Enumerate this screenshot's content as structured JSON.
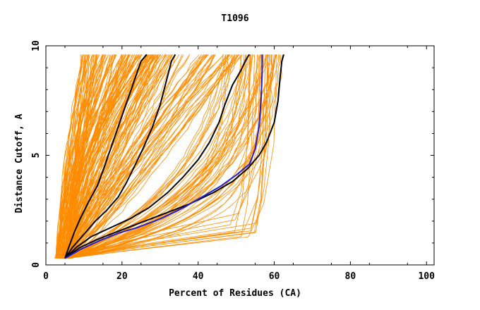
{
  "colors": {
    "background": "#ffffff",
    "frame": "#000000",
    "bundle": "#ff8c00",
    "highlight_black": "#000000",
    "highlight_blue": "#2020d0"
  },
  "chart_data": {
    "type": "line",
    "title": "T1096",
    "xlabel": "Percent of Residues (CA)",
    "ylabel": "Distance Cutoff, A",
    "xlim": [
      0,
      102
    ],
    "ylim": [
      0,
      10
    ],
    "x_ticks": [
      0,
      20,
      40,
      60,
      80,
      100
    ],
    "x_tick_labels": [
      "0",
      "20",
      "40",
      "60",
      "80",
      "100"
    ],
    "y_ticks": [
      0,
      5,
      10
    ],
    "y_tick_labels": [
      "0",
      "5",
      "10"
    ],
    "grid": false,
    "legend": "none",
    "series": [
      {
        "style": "black",
        "points": [
          [
            5,
            0.3
          ],
          [
            6,
            0.8
          ],
          [
            7.5,
            1.5
          ],
          [
            9,
            2.1
          ],
          [
            11,
            2.8
          ],
          [
            13.5,
            3.6
          ],
          [
            15,
            4.3
          ],
          [
            17,
            5.3
          ],
          [
            19,
            6.3
          ],
          [
            21,
            7.3
          ],
          [
            23,
            8.3
          ],
          [
            25,
            9.3
          ],
          [
            26.5,
            9.6
          ]
        ]
      },
      {
        "style": "black",
        "points": [
          [
            5,
            0.3
          ],
          [
            7,
            0.8
          ],
          [
            10,
            1.4
          ],
          [
            13,
            2.0
          ],
          [
            16,
            2.5
          ],
          [
            19,
            3.1
          ],
          [
            21,
            3.7
          ],
          [
            23,
            4.4
          ],
          [
            25.5,
            5.3
          ],
          [
            28,
            6.3
          ],
          [
            30,
            7.3
          ],
          [
            31.5,
            8.3
          ],
          [
            33,
            9.3
          ],
          [
            34,
            9.6
          ]
        ]
      },
      {
        "style": "black",
        "points": [
          [
            5,
            0.3
          ],
          [
            8,
            0.8
          ],
          [
            12,
            1.3
          ],
          [
            17,
            1.7
          ],
          [
            22,
            2.1
          ],
          [
            27,
            2.6
          ],
          [
            32,
            3.3
          ],
          [
            36,
            4.0
          ],
          [
            40,
            4.8
          ],
          [
            43,
            5.6
          ],
          [
            45.5,
            6.5
          ],
          [
            47,
            7.3
          ],
          [
            49,
            8.2
          ],
          [
            51,
            8.8
          ],
          [
            53,
            9.5
          ],
          [
            53.5,
            9.6
          ]
        ]
      },
      {
        "style": "black",
        "points": [
          [
            5,
            0.3
          ],
          [
            9,
            0.8
          ],
          [
            14,
            1.2
          ],
          [
            20,
            1.6
          ],
          [
            26,
            2.0
          ],
          [
            32,
            2.4
          ],
          [
            38,
            2.8
          ],
          [
            44,
            3.3
          ],
          [
            49,
            3.8
          ],
          [
            53,
            4.4
          ],
          [
            56,
            5.0
          ],
          [
            58,
            5.6
          ],
          [
            60,
            6.5
          ],
          [
            61,
            7.5
          ],
          [
            61.5,
            8.5
          ],
          [
            62,
            9.3
          ],
          [
            62.5,
            9.6
          ]
        ]
      },
      {
        "style": "blue",
        "points": [
          [
            5,
            0.3
          ],
          [
            9,
            0.7
          ],
          [
            14,
            1.1
          ],
          [
            19,
            1.45
          ],
          [
            24,
            1.7
          ],
          [
            30,
            2.1
          ],
          [
            36,
            2.6
          ],
          [
            41,
            3.1
          ],
          [
            46,
            3.6
          ],
          [
            50,
            4.1
          ],
          [
            53.5,
            4.6
          ],
          [
            55,
            5.3
          ],
          [
            56,
            6.3
          ],
          [
            56.5,
            7.5
          ],
          [
            56.8,
            8.7
          ],
          [
            56.8,
            9.6
          ]
        ]
      }
    ]
  }
}
